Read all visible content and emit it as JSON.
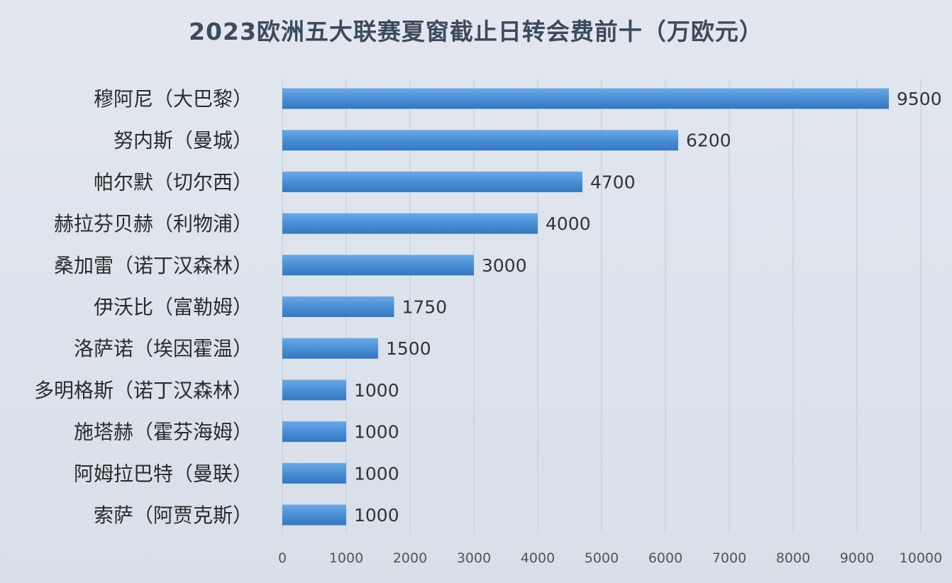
{
  "chart_data": {
    "type": "bar",
    "orientation": "horizontal",
    "title": "2023欧洲五大联赛夏窗截止日转会费前十（万欧元）",
    "categories": [
      "穆阿尼（大巴黎）",
      "努内斯（曼城）",
      "帕尔默（切尔西）",
      "赫拉芬贝赫（利物浦）",
      "桑加雷（诺丁汉森林）",
      "伊沃比（富勒姆）",
      "洛萨诺（埃因霍温）",
      "多明格斯（诺丁汉森林）",
      "施塔赫（霍芬海姆）",
      "阿姆拉巴特（曼联）",
      "索萨（阿贾克斯）"
    ],
    "values": [
      9500,
      6200,
      4700,
      4000,
      3000,
      1750,
      1500,
      1000,
      1000,
      1000,
      1000
    ],
    "value_labels": [
      "9500",
      "6200",
      "4700",
      "4000",
      "3000",
      "1750",
      "1500",
      "1000",
      "1000",
      "1000",
      "1000"
    ],
    "xlim": [
      0,
      10000
    ],
    "xticks": [
      "0",
      "1000",
      "2000",
      "3000",
      "4000",
      "5000",
      "6000",
      "7000",
      "8000",
      "9000",
      "10000"
    ],
    "xtick_values": [
      0,
      1000,
      2000,
      3000,
      4000,
      5000,
      6000,
      7000,
      8000,
      9000,
      10000
    ],
    "grid": "vertical",
    "bar_color": "#4a8fd6",
    "grid_color": "#c3cad6",
    "background": "#dde3ec"
  }
}
